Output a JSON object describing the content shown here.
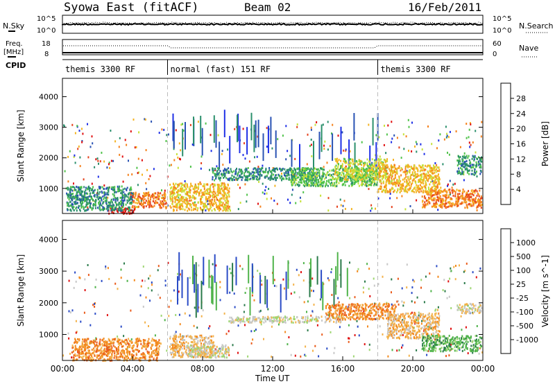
{
  "header": {
    "station": "Syowa East (fitACF)",
    "beam": "Beam 02",
    "date": "16/Feb/2011"
  },
  "top_panel": {
    "left_label": "N.Sky",
    "right_label": "N.Search",
    "left_ticks": [
      "10^5",
      "10^0"
    ],
    "right_ticks": [
      "10^5",
      "10^0"
    ]
  },
  "freq_panel": {
    "left_label_1": "Freq.",
    "left_label_2": "[MHz]",
    "right_label": "Nave",
    "left_ticks": [
      "18",
      "8"
    ],
    "right_ticks": [
      "60",
      "0"
    ]
  },
  "cpid": {
    "label": "CPID",
    "segments": [
      {
        "label": "themis 3300 RF",
        "start_hour": 0,
        "end_hour": 6
      },
      {
        "label": "normal (fast) 151 RF",
        "start_hour": 6,
        "end_hour": 18
      },
      {
        "label": "themis 3300 RF",
        "start_hour": 18,
        "end_hour": 24
      }
    ]
  },
  "x_axis": {
    "label": "Time UT",
    "ticks": [
      "00:00",
      "04:00",
      "08:00",
      "12:00",
      "16:00",
      "20:00",
      "00:00"
    ]
  },
  "chart_data": [
    {
      "type": "heatmap",
      "name": "power",
      "ylabel": "Slant Range [km]",
      "xlim": [
        0,
        24
      ],
      "ylim": [
        180,
        4600
      ],
      "yticks": [
        "1000",
        "2000",
        "3000",
        "4000"
      ],
      "colorbar": {
        "label": "Power [dB]",
        "ticks": [
          "4",
          "8",
          "12",
          "16",
          "20",
          "24",
          "28"
        ],
        "colors": [
          "#1e2fe6",
          "#2952b3",
          "#2a8f6b",
          "#50c34a",
          "#c6e23a",
          "#f4b321",
          "#f5831f",
          "#e5421d",
          "#e01010"
        ]
      },
      "regions": [
        {
          "x": [
            2.6,
            4.1
          ],
          "y": [
            200,
            420
          ],
          "level": 8
        },
        {
          "x": [
            3.8,
            5.9
          ],
          "y": [
            380,
            900
          ],
          "level": 6
        },
        {
          "x": [
            6.1,
            9.5
          ],
          "y": [
            300,
            1200
          ],
          "level": 5
        },
        {
          "x": [
            8.5,
            14.5
          ],
          "y": [
            1300,
            1700
          ],
          "level": 2
        },
        {
          "x": [
            13.0,
            18.0
          ],
          "y": [
            1100,
            1700
          ],
          "level": 3
        },
        {
          "x": [
            15.5,
            18.5
          ],
          "y": [
            1300,
            2000
          ],
          "level": 4
        },
        {
          "x": [
            18.0,
            21.5
          ],
          "y": [
            900,
            1800
          ],
          "level": 5
        },
        {
          "x": [
            20.5,
            23.9
          ],
          "y": [
            400,
            1000
          ],
          "level": 6
        },
        {
          "x": [
            0.2,
            4.0
          ],
          "y": [
            300,
            1100
          ],
          "level": 2
        },
        {
          "x": [
            22.5,
            23.9
          ],
          "y": [
            1500,
            2100
          ],
          "level": 2
        }
      ]
    },
    {
      "type": "heatmap",
      "name": "velocity",
      "ylabel": "Slant Range [km]",
      "xlim": [
        0,
        24
      ],
      "ylim": [
        180,
        4600
      ],
      "yticks": [
        "1000",
        "2000",
        "3000",
        "4000"
      ],
      "colorbar": {
        "label": "Velocity [m s^-1]",
        "ticks": [
          "1000",
          "500",
          "100",
          "25",
          "-25",
          "-100",
          "-500",
          "-1000"
        ],
        "colors": [
          "#2a4bc6",
          "#2a7a4a",
          "#4fb34a",
          "#9ed672",
          "#c7c7c7",
          "#f3b24a",
          "#f38a1f",
          "#ea5b1b",
          "#e01010"
        ]
      },
      "regions": [
        {
          "x": [
            0.5,
            5.5
          ],
          "y": [
            200,
            900
          ],
          "level": 6
        },
        {
          "x": [
            6.1,
            8.6
          ],
          "y": [
            300,
            1000
          ],
          "level": 5
        },
        {
          "x": [
            7.0,
            9.5
          ],
          "y": [
            300,
            700
          ],
          "level": 4
        },
        {
          "x": [
            9.5,
            16.0
          ],
          "y": [
            1400,
            1600
          ],
          "level": 4
        },
        {
          "x": [
            15.0,
            19.0
          ],
          "y": [
            1500,
            2000
          ],
          "level": 6
        },
        {
          "x": [
            18.5,
            21.5
          ],
          "y": [
            900,
            1700
          ],
          "level": 5
        },
        {
          "x": [
            20.5,
            23.9
          ],
          "y": [
            500,
            1000
          ],
          "level": 2
        },
        {
          "x": [
            22.5,
            23.9
          ],
          "y": [
            1700,
            2000
          ],
          "level": 4
        }
      ]
    }
  ]
}
